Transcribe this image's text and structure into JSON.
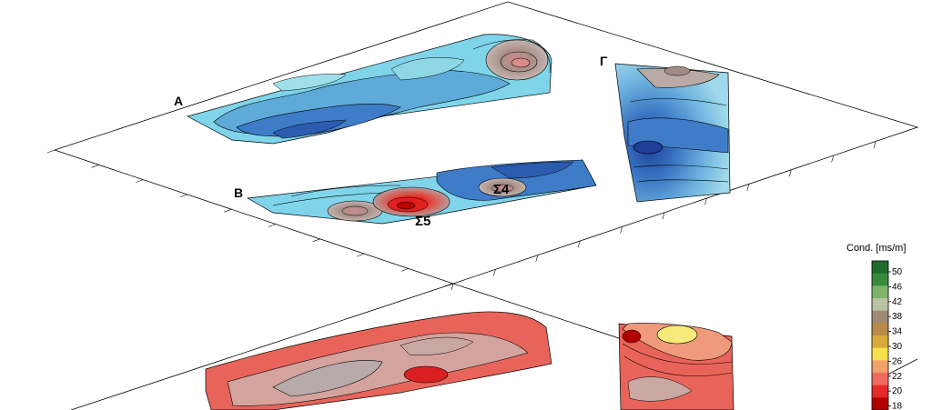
{
  "chart_data": {
    "type": "heatmap",
    "title": "",
    "legend": {
      "title": "Cond. [ms/m]",
      "ticks": [
        "50",
        "46",
        "42",
        "38",
        "34",
        "30",
        "26",
        "22",
        "20",
        "18"
      ],
      "colors": [
        "#1f6b2c",
        "#3a8a3c",
        "#7fb36b",
        "#b9c4a2",
        "#a08a76",
        "#b98a4a",
        "#d9a93a",
        "#f5e14a",
        "#f3a16a",
        "#f06a5e",
        "#e52a2a",
        "#b30000"
      ],
      "placement": "right"
    },
    "areas": [
      {
        "name": "A",
        "layer": "upper"
      },
      {
        "name": "B",
        "layer": "upper"
      },
      {
        "name": "Γ",
        "layer": "upper"
      }
    ],
    "annotations": [
      "Σ4",
      "Σ5"
    ],
    "layers": [
      {
        "name": "upper",
        "palette": "blue-cyan-brown-red"
      },
      {
        "name": "lower",
        "palette": "red-gray-yellow"
      }
    ],
    "grid": false
  }
}
